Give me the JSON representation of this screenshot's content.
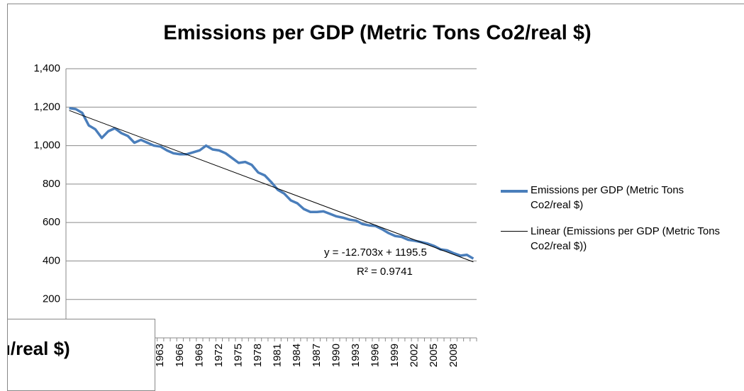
{
  "chart_data": {
    "type": "line",
    "title": "Emissions per GDP (Metric Tons Co2/real $)",
    "categories": [
      null,
      null,
      null,
      null,
      null,
      null,
      null,
      null,
      null,
      null,
      null,
      null,
      null,
      null,
      "1963",
      null,
      null,
      "1966",
      null,
      null,
      "1969",
      null,
      null,
      "1972",
      null,
      null,
      "1975",
      null,
      null,
      "1978",
      null,
      null,
      "1981",
      null,
      null,
      "1984",
      null,
      null,
      "1987",
      null,
      null,
      "1990",
      null,
      null,
      "1993",
      null,
      null,
      "1996",
      null,
      null,
      "1999",
      null,
      null,
      "2002",
      null,
      null,
      "2005",
      null,
      null,
      "2008",
      null,
      null,
      null
    ],
    "series": [
      {
        "name": "Emissions per GDP (Metric Tons Co2/real $)",
        "color": "#4a7ebb",
        "values": [
          1195,
          1190,
          1170,
          1105,
          1085,
          1040,
          1075,
          1090,
          1065,
          1050,
          1015,
          1030,
          1015,
          1000,
          995,
          975,
          960,
          955,
          955,
          965,
          975,
          1000,
          980,
          975,
          960,
          935,
          910,
          915,
          900,
          860,
          845,
          810,
          770,
          750,
          715,
          700,
          670,
          655,
          655,
          658,
          645,
          632,
          625,
          615,
          610,
          592,
          585,
          582,
          565,
          545,
          530,
          525,
          510,
          505,
          498,
          490,
          478,
          460,
          455,
          440,
          428,
          432,
          412
        ]
      }
    ],
    "trendline": {
      "name": "Linear (Emissions per GDP (Metric Tons Co2/real $))",
      "color": "#000000",
      "slope": -12.703,
      "intercept": 1195.5,
      "equation": "y = -12.703x + 1195.5",
      "r_squared": "R² = 0.9741"
    },
    "ylim": [
      0,
      1400
    ],
    "yticks": [
      200,
      400,
      600,
      800,
      {
        "value": 1000,
        "label": "1,000"
      },
      {
        "value": 1200,
        "label": "1,200"
      },
      {
        "value": 1400,
        "label": "1,400"
      }
    ],
    "grid": true,
    "legend": "right",
    "overlay_text": "u/real $)"
  }
}
